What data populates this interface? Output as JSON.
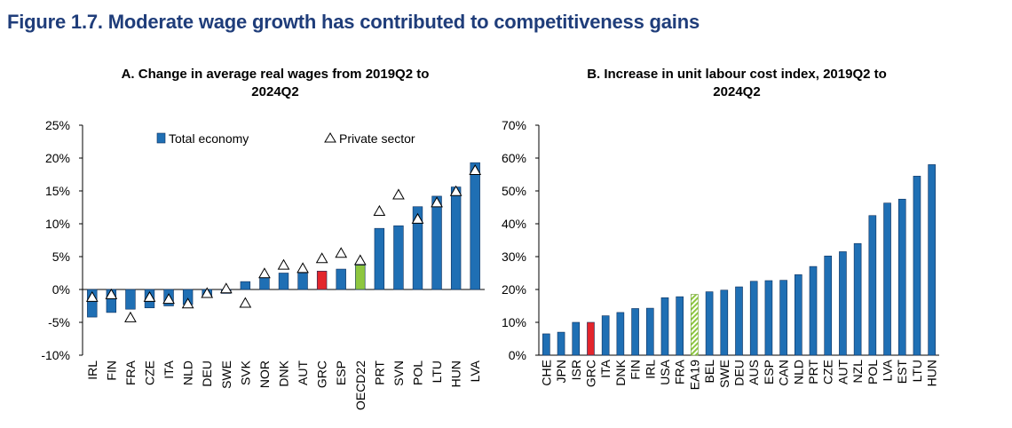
{
  "figure_title": "Figure 1.7. Moderate wage growth has contributed to competitiveness gains",
  "colors": {
    "bar": "#1f6fb4",
    "bar_edge": "#0d2f5c",
    "highlight_red": "#e3252c",
    "highlight_green": "#8dc63f",
    "hatched_green": "#8dc63f"
  },
  "chart_data": [
    {
      "type": "bar",
      "title": "A. Change in average real wages from 2019Q2 to 2024Q2",
      "title_line1": "A. Change in average real wages from 2019Q2 to",
      "title_line2": "2024Q2",
      "categories": [
        "IRL",
        "FIN",
        "FRA",
        "CZE",
        "ITA",
        "NLD",
        "DEU",
        "SWE",
        "SVK",
        "NOR",
        "DNK",
        "AUT",
        "GRC",
        "ESP",
        "OECD22",
        "PRT",
        "SVN",
        "POL",
        "LTU",
        "HUN",
        "LVA"
      ],
      "series": [
        {
          "name": "Total economy",
          "marker": "bar",
          "values": [
            -4.2,
            -3.5,
            -3.0,
            -2.8,
            -2.5,
            -2.3,
            -1.0,
            -0.6,
            1.2,
            1.8,
            2.5,
            2.5,
            2.8,
            3.1,
            3.7,
            9.3,
            9.7,
            12.6,
            14.2,
            15.6,
            19.3
          ]
        },
        {
          "name": "Private sector",
          "marker": "triangle",
          "values": [
            -1.2,
            -0.8,
            -4.3,
            -1.2,
            -1.5,
            -2.2,
            -0.6,
            0.1,
            -2.1,
            2.4,
            3.7,
            3.2,
            4.7,
            5.5,
            4.4,
            11.9,
            14.4,
            10.7,
            13.2,
            14.9,
            18.1
          ]
        }
      ],
      "highlights": {
        "GRC": "red",
        "OECD22": "green"
      },
      "ylim": [
        -10,
        25
      ],
      "yticks": [
        "-10%",
        "-5%",
        "0%",
        "5%",
        "10%",
        "15%",
        "20%",
        "25%"
      ],
      "ytick_values": [
        -10,
        -5,
        0,
        5,
        10,
        15,
        20,
        25
      ],
      "legend_position": "top"
    },
    {
      "type": "bar",
      "title": "B. Increase in unit labour cost index, 2019Q2 to 2024Q2",
      "title_line1": "B. Increase in unit labour cost index, 2019Q2 to",
      "title_line2": "2024Q2",
      "categories": [
        "CHE",
        "JPN",
        "ISR",
        "GRC",
        "ITA",
        "DNK",
        "FIN",
        "IRL",
        "USA",
        "FRA",
        "EA19",
        "BEL",
        "SWE",
        "DEU",
        "AUS",
        "ESP",
        "CAN",
        "NLD",
        "PRT",
        "CZE",
        "AUT",
        "NZL",
        "POL",
        "LVA",
        "EST",
        "LTU",
        "HUN"
      ],
      "values": [
        6.5,
        7.0,
        10.0,
        10.0,
        12.0,
        13.0,
        14.2,
        14.3,
        17.5,
        17.8,
        18.5,
        19.3,
        19.8,
        20.8,
        22.5,
        22.7,
        22.8,
        24.5,
        27.0,
        30.2,
        31.5,
        34.0,
        42.5,
        46.3,
        47.5,
        54.5,
        58.0
      ],
      "highlights": {
        "GRC": "red",
        "EA19": "hatched"
      },
      "ylim": [
        0,
        70
      ],
      "yticks": [
        "0%",
        "10%",
        "20%",
        "30%",
        "40%",
        "50%",
        "60%",
        "70%"
      ],
      "ytick_values": [
        0,
        10,
        20,
        30,
        40,
        50,
        60,
        70
      ]
    }
  ]
}
